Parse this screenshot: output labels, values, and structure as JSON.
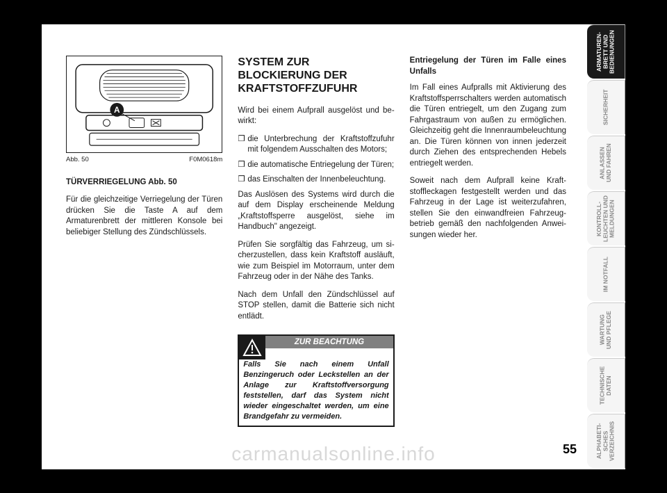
{
  "page_number": "55",
  "watermark": "carmanualsonline.info",
  "figure": {
    "caption_left": "Abb. 50",
    "caption_right": "F0M0618m",
    "marker": "A"
  },
  "col1": {
    "heading": "TÜRVERRIEGELUNG Abb. 50",
    "p1": "Für die gleichzeitige Verriegelung der Türen drücken Sie die Taste A auf dem Armaturenbrett der mittleren Konsole bei beliebiger Stellung des Zündschlüssels."
  },
  "col2": {
    "title": "SYSTEM ZUR BLOCKIERUNG DER KRAFTSTOFFZUFUHR",
    "intro": "Wird bei einem Aufprall ausgelöst und be­wirkt:",
    "b1": "die Unterbrechung der Kraftstoffzufuhr mit folgendem Ausschalten des Motors;",
    "b2": "die automatische Entriegelung der Türen;",
    "b3": "das Einschalten der Innenbeleuchtung.",
    "p2": "Das Auslösen des Systems wird durch die auf dem Display erscheinende Meldung „Kraftstoffsperre ausgelöst, siehe im Handbuch\" angezeigt.",
    "p3": "Prüfen Sie sorgfältig das Fahrzeug, um si­cherzustellen, dass kein Kraftstoff ausläuft, wie zum Beispiel im Motorraum, unter dem Fahrzeug oder in der Nähe des Tanks.",
    "p4": "Nach dem Unfall den Zündschlüssel auf STOP stellen, damit die Batterie sich nicht entlädt.",
    "warning_label": "ZUR BEACHTUNG",
    "warning_text": "Falls Sie nach einem Unfall Benzingeruch oder Leckstel­len an der Anlage zur Kraftstoffver­sorgung feststellen, darf das System nicht wieder eingeschaltet werden, um eine Brandgefahr zu vermeiden."
  },
  "col3": {
    "heading": "Entriegelung der Türen im Falle eines Unfalls",
    "p1": "Im Fall eines Aufpralls mit Aktivierung des Kraftstoffsperrschalters werden automa­tisch die Türen entriegelt, um den Zugang zum Fahrgastraum von außen zu ermög­lichen. Gleichzeitig geht die Innenraum­beleuchtung an. Die Türen können von in­nen jederzeit durch Ziehen des entspre­chenden Hebels entriegelt werden.",
    "p2": "Soweit nach dem Aufprall keine Kraft­stoffleckagen festgestellt werden und das Fahrzeug in der Lage ist weiterzufahren, stellen Sie den einwandfreien Fahrzeug­betrieb gemäß den nachfolgenden Anwei­sungen wieder her."
  },
  "tabs": [
    {
      "label": "ARMATUREN-\nBRETT UND\nBEDIENUNGEN",
      "active": true
    },
    {
      "label": "SICHERHEIT",
      "active": false
    },
    {
      "label": "ANLASSEN\nUND FAHREN",
      "active": false
    },
    {
      "label": "KONTROLL-\nLEUCHTEN UND\nMELDUNGEN",
      "active": false
    },
    {
      "label": "IM NOTFALL",
      "active": false
    },
    {
      "label": "WARTUNG\nUND PFLEGE",
      "active": false
    },
    {
      "label": "TECHNISCHE\nDATEN",
      "active": false
    },
    {
      "label": "ALPHABETI-\nSCHES\nVERZEICHNIS",
      "active": false
    }
  ],
  "colors": {
    "page_bg": "#ffffff",
    "outer_bg": "#000000",
    "text": "#1a1a1a",
    "tab_inactive_bg": "#f5f5f5",
    "tab_inactive_text": "#888888",
    "tab_active_bg": "#1a1a1a",
    "tab_active_text": "#ffffff",
    "warning_bar": "#808080",
    "watermark": "#d8d8d8"
  }
}
